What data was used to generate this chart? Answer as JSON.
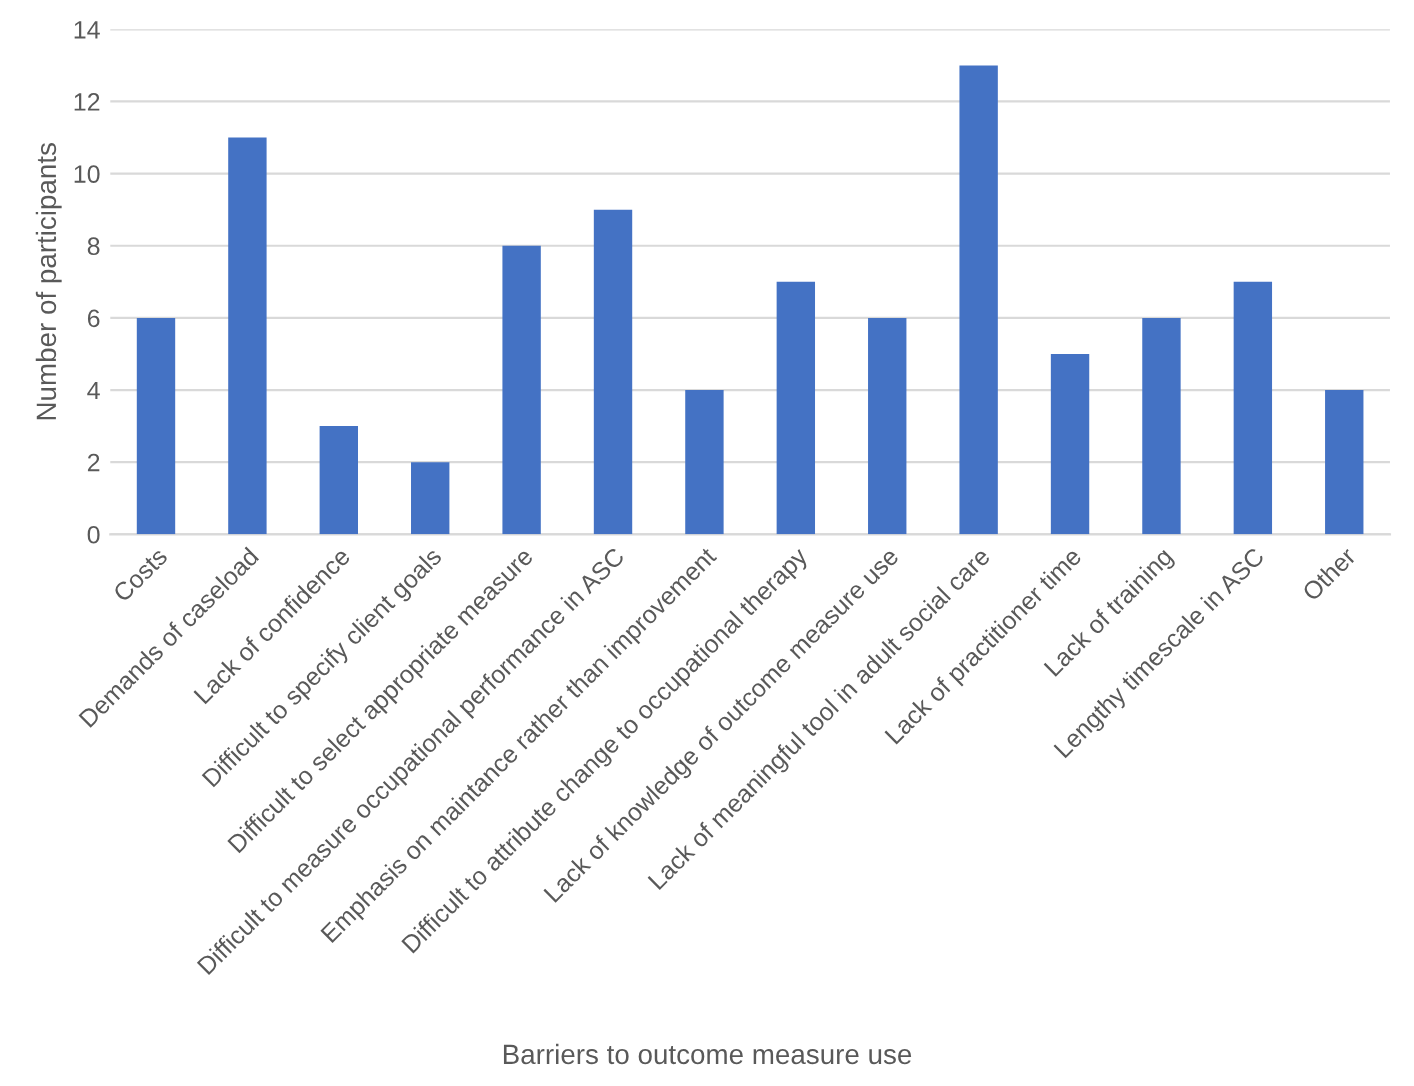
{
  "chart_data": {
    "type": "bar",
    "xlabel": "Barriers to outcome measure use",
    "ylabel": "Number of participants",
    "categories": [
      "Costs",
      "Demands of caseload",
      "Lack of confidence",
      "Difficult to specify client goals",
      "Difficult to select appropriate measure",
      "Difficult to measure occupational performance in ASC",
      "Emphasis on maintance rather than improvement",
      "Difficult to attribute change to occupational therapy",
      "Lack of knowledge of outcome measure use",
      "Lack of meaningful tool in adult social care",
      "Lack of practitioner time",
      "Lack of training",
      "Lengthy timescale in ASC",
      "Other"
    ],
    "values": [
      6,
      11,
      3,
      2,
      8,
      9,
      4,
      7,
      6,
      13,
      5,
      6,
      7,
      4
    ],
    "color": "#4472c4",
    "ylim": [
      0,
      14
    ],
    "yticks": [
      0,
      2,
      4,
      6,
      8,
      10,
      12,
      14
    ],
    "grid": "y",
    "legend": false
  }
}
